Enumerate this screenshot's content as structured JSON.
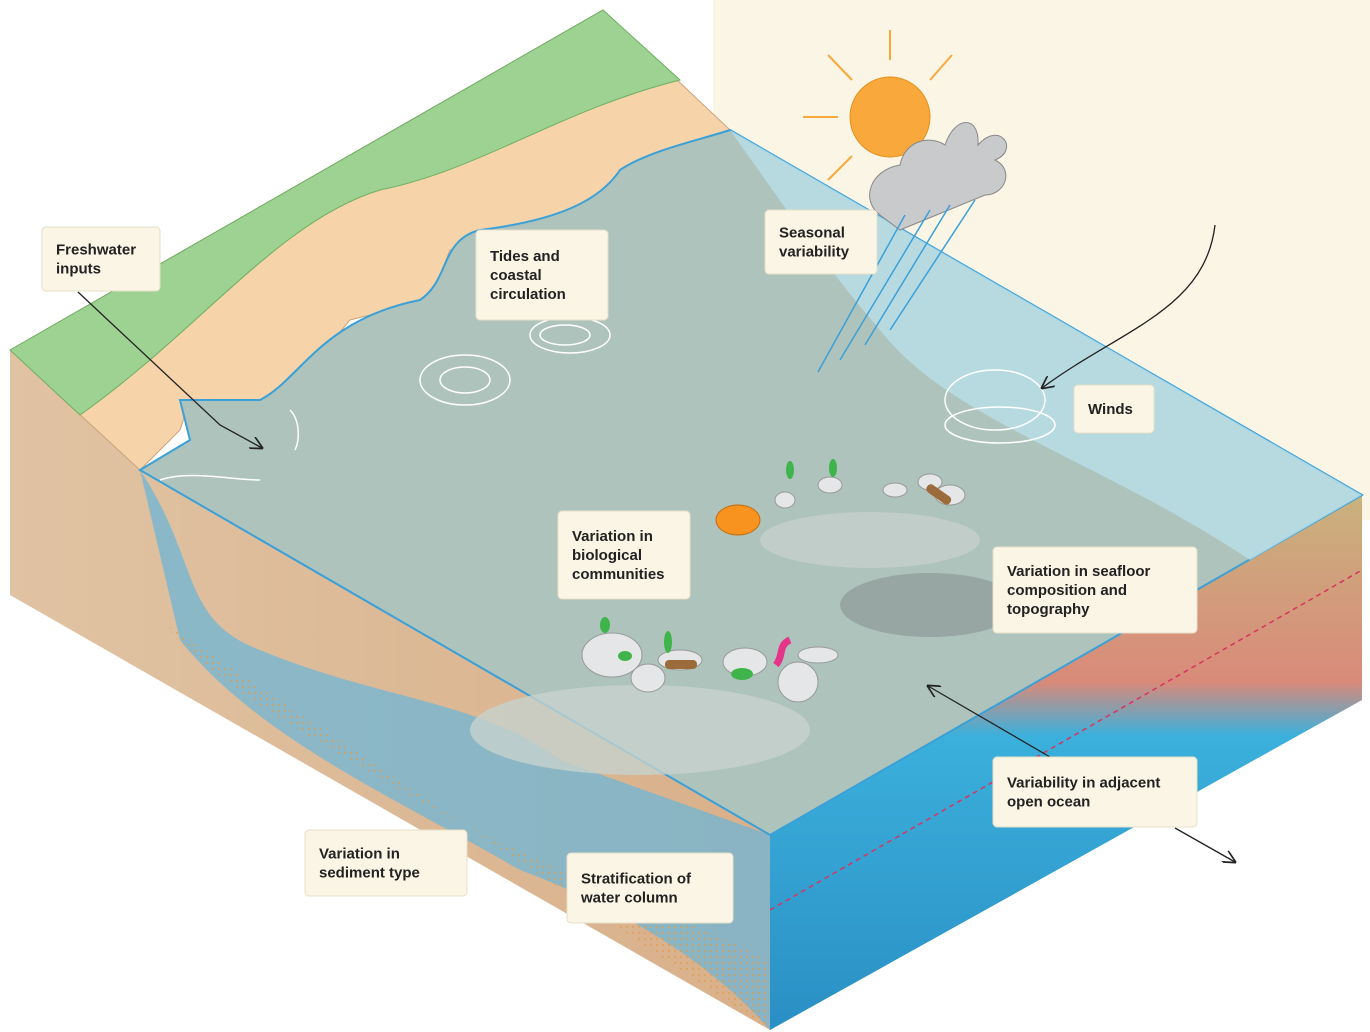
{
  "labels": [
    {
      "lines": [
        "Freshwater",
        "inputs"
      ]
    },
    {
      "lines": [
        "Tides and",
        "coastal",
        "circulation"
      ]
    },
    {
      "lines": [
        "Seasonal",
        "variability"
      ]
    },
    {
      "lines": [
        "Winds"
      ]
    },
    {
      "lines": [
        "Variation in",
        "biological",
        "communities"
      ]
    },
    {
      "lines": [
        "Variation in seafloor",
        "composition and",
        "topography"
      ]
    },
    {
      "lines": [
        "Variability in adjacent",
        "open ocean"
      ]
    },
    {
      "lines": [
        "Variation in",
        "sediment type"
      ]
    },
    {
      "lines": [
        "Stratification of",
        "water column"
      ]
    }
  ]
}
